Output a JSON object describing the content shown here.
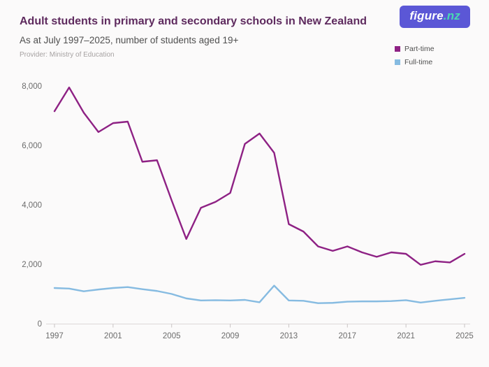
{
  "header": {
    "title": "Adult students in primary and secondary schools in New Zealand",
    "subtitle": "As at July 1997–2025, number of students aged 19+",
    "provider": "Provider: Ministry of Education"
  },
  "logo": {
    "text_main": "figure",
    "text_suffix": ".nz",
    "bg_color": "#5b57d6",
    "suffix_color": "#49d7b2"
  },
  "legend": {
    "items": [
      {
        "label": "Part-time",
        "color": "#8e2184"
      },
      {
        "label": "Full-time",
        "color": "#86bbe1"
      }
    ]
  },
  "chart_data": {
    "type": "line",
    "title": "Adult students in primary and secondary schools in New Zealand",
    "subtitle": "As at July 1997–2025, number of students aged 19+",
    "x": [
      1997,
      1998,
      1999,
      2000,
      2001,
      2002,
      2003,
      2004,
      2005,
      2006,
      2007,
      2008,
      2009,
      2010,
      2011,
      2012,
      2013,
      2014,
      2015,
      2016,
      2017,
      2018,
      2019,
      2020,
      2021,
      2022,
      2023,
      2024,
      2025
    ],
    "series": [
      {
        "name": "Part-time",
        "color": "#8e2184",
        "values": [
          7150,
          7950,
          7100,
          6450,
          6750,
          6800,
          5450,
          5500,
          4150,
          2850,
          3900,
          4100,
          4400,
          6050,
          6400,
          5750,
          3350,
          3100,
          2600,
          2450,
          2600,
          2400,
          2250,
          2400,
          2350,
          1980,
          2100,
          2060,
          2350
        ]
      },
      {
        "name": "Full-time",
        "color": "#86bbe1",
        "values": [
          1200,
          1180,
          1090,
          1150,
          1200,
          1230,
          1160,
          1100,
          1000,
          850,
          780,
          790,
          780,
          800,
          720,
          1280,
          780,
          770,
          690,
          700,
          740,
          750,
          750,
          760,
          790,
          710,
          770,
          820,
          870
        ]
      }
    ],
    "xlim": [
      1997,
      2025
    ],
    "ylim": [
      0,
      8000
    ],
    "xticks": [
      1997,
      2001,
      2005,
      2009,
      2013,
      2017,
      2021,
      2025
    ],
    "yticks": [
      0,
      2000,
      4000,
      6000,
      8000
    ],
    "xlabel": "",
    "ylabel": "",
    "grid": false,
    "legend_position": "top-right"
  }
}
